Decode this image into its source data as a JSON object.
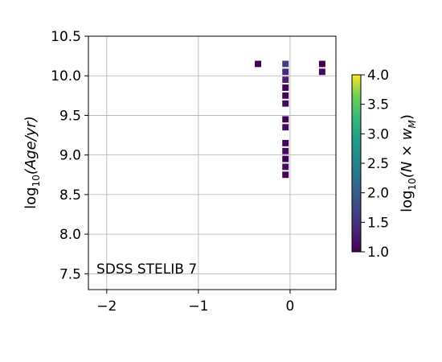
{
  "chart_data": {
    "type": "heatmap",
    "annotation": "SDSS STELIB 7",
    "xlim": [
      -2.2,
      0.5
    ],
    "ylim": [
      7.3,
      10.5
    ],
    "x_ticks": [
      {
        "value": -2,
        "label": "−2"
      },
      {
        "value": -1,
        "label": "−1"
      },
      {
        "value": 0,
        "label": "0"
      }
    ],
    "y_ticks": [
      {
        "value": 7.5,
        "label": "7.5"
      },
      {
        "value": 8.0,
        "label": "8.0"
      },
      {
        "value": 8.5,
        "label": "8.5"
      },
      {
        "value": 9.0,
        "label": "9.0"
      },
      {
        "value": 9.5,
        "label": "9.5"
      },
      {
        "value": 10.0,
        "label": "10.0"
      },
      {
        "value": 10.5,
        "label": "10.5"
      }
    ],
    "ylabel_parts": {
      "prefix": "log",
      "sub": "10",
      "body": "(Age/yr)"
    },
    "grid": true,
    "colorbar": {
      "range": [
        1.0,
        4.0
      ],
      "ticks": [
        {
          "value": 1.0,
          "label": "1.0"
        },
        {
          "value": 1.5,
          "label": "1.5"
        },
        {
          "value": 2.0,
          "label": "2.0"
        },
        {
          "value": 2.5,
          "label": "2.5"
        },
        {
          "value": 3.0,
          "label": "3.0"
        },
        {
          "value": 3.5,
          "label": "3.5"
        },
        {
          "value": 4.0,
          "label": "4.0"
        }
      ],
      "label_parts": {
        "prefix": "log",
        "sub": "10",
        "body": "(N × w",
        "body_sub": "M",
        "close": ")"
      },
      "colormap": "viridis"
    },
    "cell_size": {
      "dx": 0.07,
      "dy": 0.08
    },
    "points": [
      {
        "x": -0.35,
        "y": 10.15,
        "v": 1.0
      },
      {
        "x": -0.05,
        "y": 10.15,
        "v": 1.6
      },
      {
        "x": -0.05,
        "y": 10.05,
        "v": 1.4
      },
      {
        "x": -0.05,
        "y": 9.95,
        "v": 1.3
      },
      {
        "x": -0.05,
        "y": 9.85,
        "v": 1.0
      },
      {
        "x": -0.05,
        "y": 9.75,
        "v": 1.0
      },
      {
        "x": -0.05,
        "y": 9.65,
        "v": 1.1
      },
      {
        "x": -0.05,
        "y": 9.45,
        "v": 1.0
      },
      {
        "x": -0.05,
        "y": 9.35,
        "v": 1.1
      },
      {
        "x": -0.05,
        "y": 9.15,
        "v": 1.0
      },
      {
        "x": -0.05,
        "y": 9.05,
        "v": 1.1
      },
      {
        "x": -0.05,
        "y": 8.95,
        "v": 1.0
      },
      {
        "x": -0.05,
        "y": 8.85,
        "v": 1.1
      },
      {
        "x": -0.05,
        "y": 8.75,
        "v": 1.0
      },
      {
        "x": 0.35,
        "y": 10.15,
        "v": 1.0
      },
      {
        "x": 0.35,
        "y": 10.05,
        "v": 1.1
      }
    ]
  }
}
